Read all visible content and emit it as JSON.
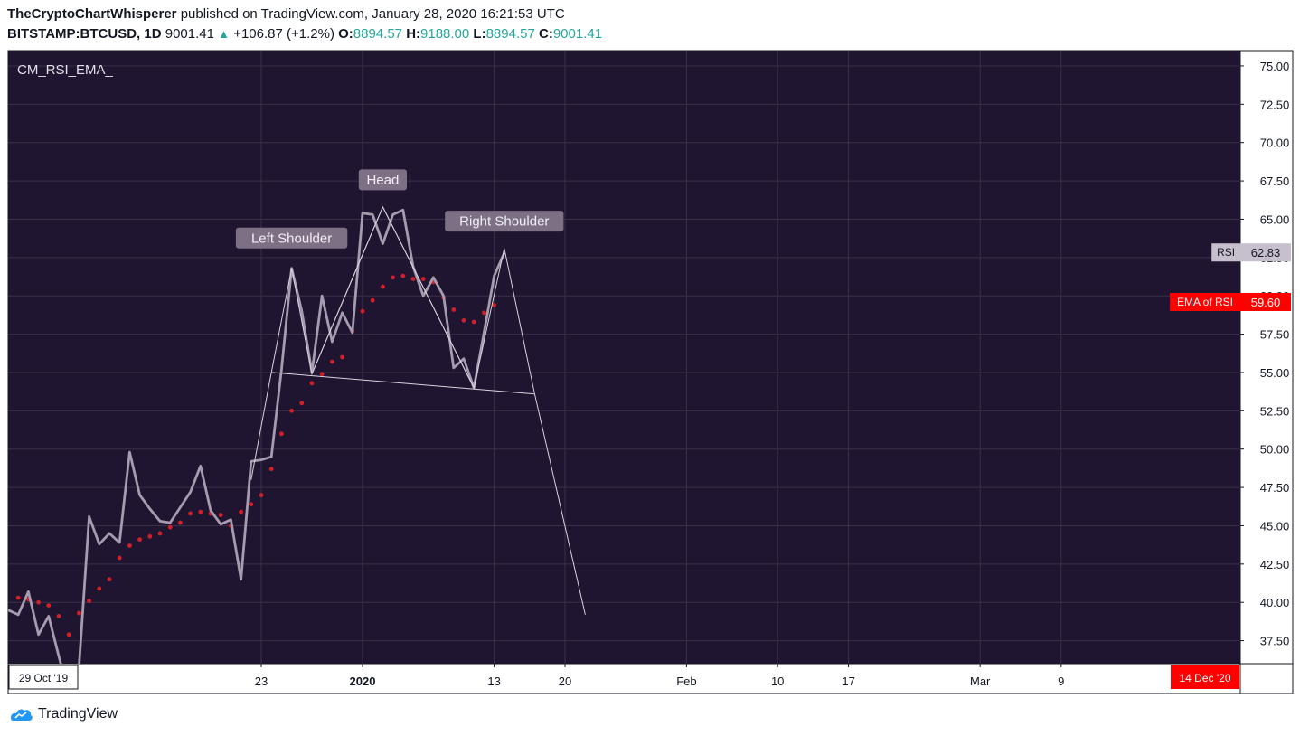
{
  "header": {
    "author": "TheCryptoChartWhisperer",
    "published_text": " published on TradingView.com, January 28, 2020 16:21:53 UTC",
    "symbol": "BITSTAMP:BTCUSD, 1D",
    "last": "9001.41",
    "change": "+106.87 (+1.2%)",
    "o_label": "O:",
    "o_value": "8894.57",
    "h_label": "H:",
    "h_value": "9188.00",
    "l_label": "L:",
    "l_value": "8894.57",
    "c_label": "C:",
    "c_value": "9001.41"
  },
  "indicator_label": "CM_RSI_EMA_",
  "footer": {
    "brand": "TradingView"
  },
  "colors": {
    "background": "#1f1530",
    "rsi_line": "#a79bb0",
    "ema_dots": "#d1202a",
    "ema_badge": "#ff0000",
    "rsi_badge": "#c7bfcc",
    "pattern_lines": "#d9d3de",
    "annotation_fill": "#7d7085",
    "up": "#26a69a"
  },
  "chart_data": {
    "type": "line",
    "ylim": [
      36,
      76
    ],
    "y_ticks": [
      "37.50",
      "40.00",
      "42.50",
      "45.00",
      "47.50",
      "50.00",
      "52.50",
      "55.00",
      "57.50",
      "60.00",
      "62.50",
      "65.00",
      "67.50",
      "70.00",
      "72.50",
      "75.00"
    ],
    "x_ticks": [
      "23",
      "2020",
      "13",
      "20",
      "Feb",
      "10",
      "17",
      "Mar",
      "9"
    ],
    "x_tick_day_index": [
      25,
      35,
      48,
      55,
      67,
      76,
      83,
      96,
      104
    ],
    "x_start_label": "29 Oct '19",
    "x_end_label": "14 Dec '20",
    "series": [
      {
        "name": "RSI",
        "values": [
          39.5,
          39.2,
          40.7,
          37.9,
          39.1,
          36.5,
          34.0,
          35.8,
          45.6,
          43.8,
          44.5,
          43.9,
          49.8,
          47.0,
          46.1,
          45.3,
          45.2,
          46.2,
          47.2,
          48.9,
          46.0,
          45.1,
          45.4,
          41.5,
          49.2,
          49.3,
          49.5,
          55.2,
          61.8,
          59.0,
          55.0,
          60.0,
          57.0,
          58.9,
          57.6,
          65.4,
          65.3,
          63.4,
          65.3,
          65.6,
          61.9,
          60.0,
          61.2,
          60.0,
          55.3,
          55.9,
          54.0,
          57.6,
          61.3,
          62.8
        ]
      },
      {
        "name": "EMA of RSI",
        "values": [
          null,
          40.3,
          40.2,
          40.0,
          39.8,
          39.1,
          37.9,
          39.3,
          40.1,
          40.9,
          41.5,
          42.9,
          43.7,
          44.1,
          44.3,
          44.5,
          44.9,
          45.2,
          45.8,
          45.9,
          45.8,
          45.7,
          45.0,
          45.9,
          46.4,
          47.0,
          48.7,
          51.0,
          52.5,
          53.0,
          54.3,
          54.9,
          55.7,
          56.0,
          57.7,
          59.0,
          59.7,
          60.6,
          61.2,
          61.3,
          61.1,
          61.1,
          60.9,
          59.9,
          59.1,
          58.4,
          58.3,
          58.9,
          59.4,
          null
        ]
      }
    ],
    "last_values": {
      "rsi": "62.83",
      "ema": "59.60"
    },
    "badge_labels": {
      "rsi": "RSI",
      "ema": "EMA of RSI"
    },
    "annotations": [
      {
        "text": "Left Shoulder",
        "x": 28,
        "y": 62.0
      },
      {
        "text": "Head",
        "x": 37,
        "y": 65.8
      },
      {
        "text": "Right Shoulder",
        "x": 49,
        "y": 63.1
      }
    ],
    "pattern_lines": [
      [
        [
          26,
          55.0
        ],
        [
          28,
          61.8
        ],
        [
          30,
          54.9
        ],
        [
          37,
          65.8
        ],
        [
          46,
          54.0
        ],
        [
          49,
          63.1
        ],
        [
          52,
          53.6
        ]
      ],
      [
        [
          26,
          55.0
        ],
        [
          52,
          53.6
        ]
      ],
      [
        [
          30,
          54.9
        ],
        [
          37,
          65.8
        ]
      ],
      [
        [
          37,
          65.8
        ],
        [
          46,
          54.0
        ]
      ],
      [
        [
          52,
          53.6
        ],
        [
          57,
          39.2
        ]
      ],
      [
        [
          24,
          48.0
        ],
        [
          26,
          55.0
        ]
      ]
    ]
  }
}
